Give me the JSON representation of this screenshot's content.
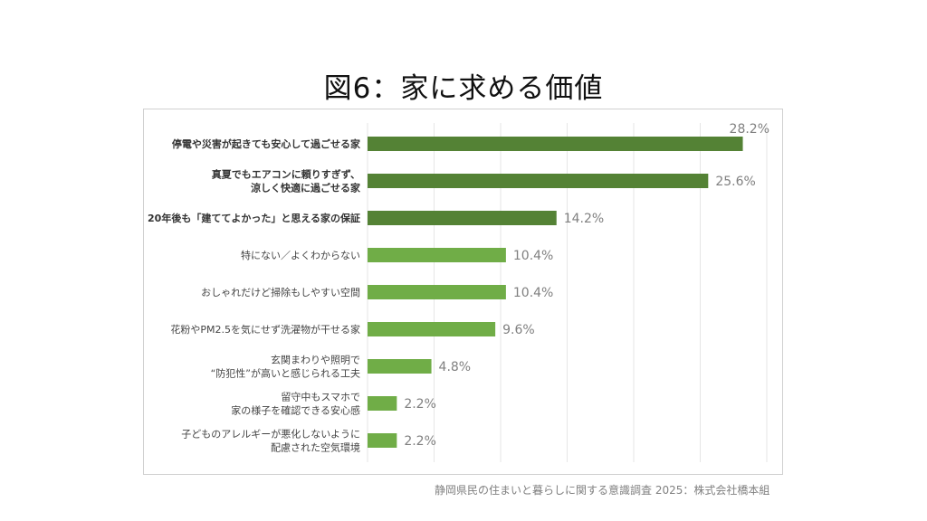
{
  "title": "図6：家に求める価値",
  "source": "静岡県民の住まいと暮らしに関する意識調査 2025：株式会社橋本組",
  "chart_data": {
    "type": "bar",
    "orientation": "horizontal",
    "categories": [
      [
        "停電や災害が起きても安心して過ごせる家"
      ],
      [
        "真夏でもエアコンに頼りすぎず、",
        "涼しく快適に過ごせる家"
      ],
      [
        "20年後も「建ててよかった」と思える家の保証"
      ],
      [
        "特にない／よくわからない"
      ],
      [
        "おしゃれだけど掃除もしやすい空間"
      ],
      [
        "花粉やPM2.5を気にせず洗濯物が干せる家"
      ],
      [
        "玄関まわりや照明で",
        "“防犯性”が高いと感じられる工夫"
      ],
      [
        "留守中もスマホで",
        "家の様子を確認できる安心感"
      ],
      [
        "子どものアレルギーが悪化しないように",
        "配慮された空気環境"
      ]
    ],
    "values": [
      28.2,
      25.6,
      14.2,
      10.4,
      10.4,
      9.6,
      4.8,
      2.2,
      2.2
    ],
    "value_labels": [
      "28.2%",
      "25.6%",
      "14.2%",
      "10.4%",
      "10.4%",
      "9.6%",
      "4.8%",
      "2.2%",
      "2.2%"
    ],
    "highlight_top": 3,
    "xlim": [
      0,
      30
    ],
    "grid": true,
    "colors": {
      "highlight": "#548235",
      "normal": "#70AD47",
      "grid": "#e6e6e6",
      "label": "#808080"
    }
  }
}
